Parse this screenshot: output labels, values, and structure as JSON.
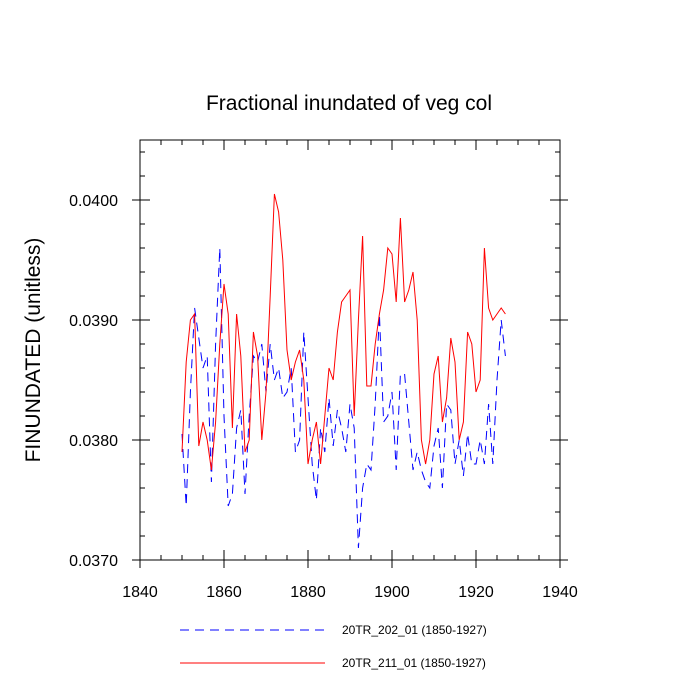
{
  "chart_data": {
    "type": "line",
    "title": "Fractional inundated of veg col",
    "xlabel": "",
    "ylabel": "FINUNDATED  (unitless)",
    "xlim": [
      1840,
      1940
    ],
    "ylim": [
      0.037,
      0.0405
    ],
    "x_ticks": [
      1840,
      1860,
      1880,
      1900,
      1920,
      1940
    ],
    "x_tick_labels": [
      "1840",
      "1860",
      "1880",
      "1900",
      "1920",
      "1940"
    ],
    "y_ticks": [
      0.037,
      0.038,
      0.039,
      0.04
    ],
    "y_tick_labels": [
      "0.0370",
      "0.0380",
      "0.0390",
      "0.0400"
    ],
    "grid": false,
    "legend_position": "bottom",
    "x": [
      1850,
      1851,
      1852,
      1853,
      1854,
      1855,
      1856,
      1857,
      1858,
      1859,
      1860,
      1861,
      1862,
      1863,
      1864,
      1865,
      1866,
      1867,
      1868,
      1869,
      1870,
      1871,
      1872,
      1873,
      1874,
      1875,
      1876,
      1877,
      1878,
      1879,
      1880,
      1881,
      1882,
      1883,
      1884,
      1885,
      1886,
      1887,
      1888,
      1889,
      1890,
      1891,
      1892,
      1893,
      1894,
      1895,
      1896,
      1897,
      1898,
      1899,
      1900,
      1901,
      1902,
      1903,
      1904,
      1905,
      1906,
      1907,
      1908,
      1909,
      1910,
      1911,
      1912,
      1913,
      1914,
      1915,
      1916,
      1917,
      1918,
      1919,
      1920,
      1921,
      1922,
      1923,
      1924,
      1925,
      1926,
      1927
    ],
    "series": [
      {
        "name": "20TR_202_01 (1850-1927)",
        "color": "#0000ff",
        "dash": "dashed",
        "values": [
          0.03805,
          0.03745,
          0.0384,
          0.0391,
          0.03885,
          0.0386,
          0.0387,
          0.03765,
          0.0388,
          0.0396,
          0.0382,
          0.03745,
          0.03755,
          0.0381,
          0.03825,
          0.03755,
          0.0382,
          0.0387,
          0.03865,
          0.0388,
          0.0384,
          0.0388,
          0.0385,
          0.0386,
          0.03835,
          0.0384,
          0.0386,
          0.0379,
          0.038,
          0.0389,
          0.03835,
          0.0378,
          0.0375,
          0.0381,
          0.0379,
          0.03835,
          0.03795,
          0.03825,
          0.0381,
          0.0379,
          0.0383,
          0.0381,
          0.0371,
          0.0376,
          0.0378,
          0.03775,
          0.0383,
          0.03905,
          0.03815,
          0.0382,
          0.0384,
          0.03775,
          0.03855,
          0.03855,
          0.03815,
          0.03775,
          0.0379,
          0.03775,
          0.03765,
          0.0376,
          0.03795,
          0.0381,
          0.0376,
          0.0383,
          0.03825,
          0.0378,
          0.038,
          0.0377,
          0.03805,
          0.0378,
          0.0378,
          0.038,
          0.0378,
          0.0383,
          0.0378,
          0.0385,
          0.039,
          0.0387
        ]
      },
      {
        "name": "20TR_211_01 (1850-1927)",
        "color": "#ff0000",
        "dash": "solid",
        "values": [
          0.0379,
          0.03865,
          0.039,
          0.03905,
          0.03795,
          0.03815,
          0.038,
          0.03775,
          0.03815,
          0.0388,
          0.0393,
          0.03905,
          0.0381,
          0.03905,
          0.0387,
          0.0379,
          0.038,
          0.0389,
          0.0387,
          0.038,
          0.0384,
          0.0392,
          0.04005,
          0.0399,
          0.0395,
          0.03875,
          0.0385,
          0.03865,
          0.03875,
          0.0385,
          0.0378,
          0.038,
          0.03815,
          0.0378,
          0.0382,
          0.0386,
          0.0385,
          0.0389,
          0.03915,
          0.0392,
          0.03925,
          0.0382,
          0.039,
          0.0397,
          0.03845,
          0.03845,
          0.0388,
          0.03905,
          0.03925,
          0.0396,
          0.03955,
          0.03915,
          0.03985,
          0.03915,
          0.03925,
          0.0394,
          0.039,
          0.038,
          0.0378,
          0.038,
          0.03855,
          0.0387,
          0.03815,
          0.03835,
          0.03885,
          0.03865,
          0.038,
          0.03815,
          0.0389,
          0.0388,
          0.0384,
          0.0385,
          0.0396,
          0.0391,
          0.039,
          0.03905,
          0.0391,
          0.03905
        ]
      }
    ]
  }
}
